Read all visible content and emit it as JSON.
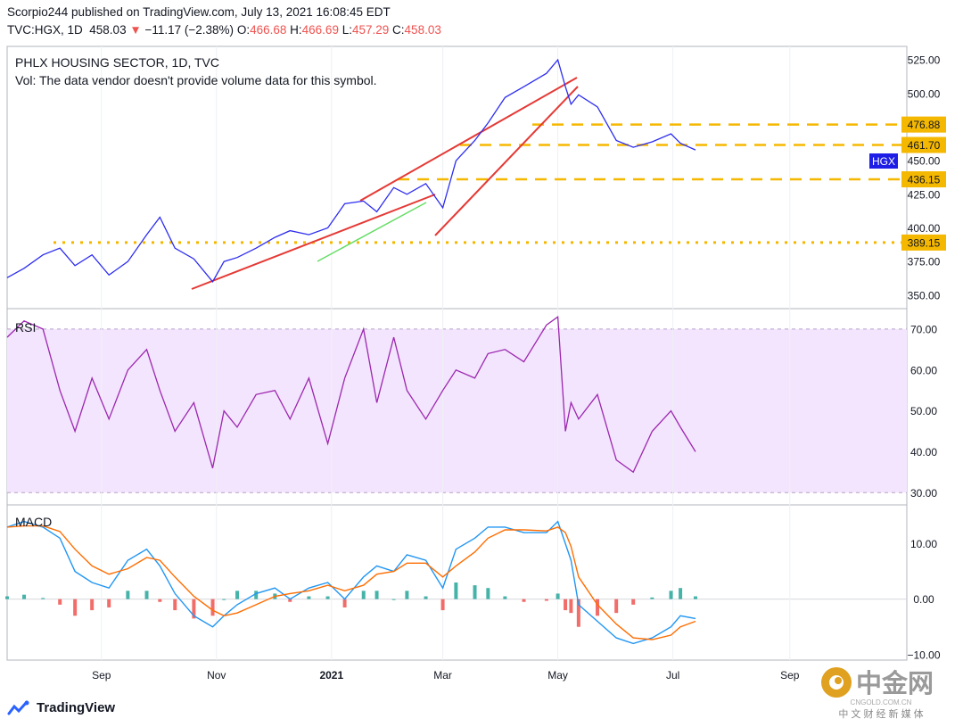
{
  "header": {
    "published": "Scorpio244 published on TradingView.com, July 13, 2021 16:08:45 EDT",
    "symbol": "TVC:HGX, 1D",
    "last": "458.03",
    "change_arrow": "▼",
    "change": "−11.17 (−2.38%)",
    "o_label": "O:",
    "o": "466.68",
    "h_label": "H:",
    "h": "466.69",
    "l_label": "L:",
    "l": "457.29",
    "c_label": "C:",
    "c": "458.03"
  },
  "price_pane": {
    "title": "PHLX HOUSING SECTOR, 1D, TVC",
    "vol_note": "Vol: The data vendor doesn't provide volume data for this symbol.",
    "ticker_badge": "HGX",
    "level_labels": [
      "476.88",
      "461.70",
      "436.15",
      "389.15"
    ]
  },
  "rsi_pane": {
    "title": "RSI"
  },
  "macd_pane": {
    "title": "MACD"
  },
  "x_axis_labels": [
    "Sep",
    "Nov",
    "2021",
    "Mar",
    "May",
    "Jul",
    "Sep"
  ],
  "footer": {
    "brand": "TradingView"
  },
  "watermark": {
    "cn": "中金网",
    "en": "CNGOLD.COM.CN",
    "tag": "中 文 财 经 新 媒 体"
  },
  "colors": {
    "price": "#2d2df0",
    "rsi": "#9c27b0",
    "macd": "#2196f3",
    "signal": "#ff6d00",
    "trend": "#e53935",
    "level": "#f5b800",
    "support": "#66dd66"
  },
  "chart_data": [
    {
      "type": "line",
      "title": "PHLX HOUSING SECTOR, 1D, TVC",
      "ylim": [
        340,
        535
      ],
      "yticks": [
        350,
        375,
        400,
        425,
        450,
        475,
        500,
        525
      ],
      "ytick_labels": [
        "350.00",
        "375.00",
        "400.00",
        "425.00",
        "450.00",
        "475.00",
        "500.00",
        "525.00"
      ],
      "x": [
        "2020-07-13",
        "2020-07-22",
        "2020-08-01",
        "2020-08-10",
        "2020-08-18",
        "2020-08-27",
        "2020-09-05",
        "2020-09-15",
        "2020-09-25",
        "2020-10-02",
        "2020-10-10",
        "2020-10-20",
        "2020-10-30",
        "2020-11-05",
        "2020-11-12",
        "2020-11-22",
        "2020-12-02",
        "2020-12-10",
        "2020-12-20",
        "2020-12-30",
        "2021-01-08",
        "2021-01-18",
        "2021-01-25",
        "2021-02-03",
        "2021-02-10",
        "2021-02-20",
        "2021-03-01",
        "2021-03-08",
        "2021-03-18",
        "2021-03-25",
        "2021-04-03",
        "2021-04-13",
        "2021-04-25",
        "2021-05-01",
        "2021-05-05",
        "2021-05-08",
        "2021-05-12",
        "2021-05-22",
        "2021-06-01",
        "2021-06-10",
        "2021-06-20",
        "2021-06-30",
        "2021-07-05",
        "2021-07-13"
      ],
      "series": [
        {
          "values": [
            363,
            370,
            380,
            385,
            372,
            380,
            365,
            375,
            395,
            408,
            385,
            377,
            360,
            375,
            378,
            385,
            393,
            398,
            395,
            400,
            418,
            420,
            412,
            430,
            425,
            433,
            415,
            450,
            465,
            478,
            497,
            505,
            515,
            525,
            505,
            492,
            499,
            490,
            465,
            460,
            464,
            470,
            463,
            458
          ]
        }
      ],
      "levels": [
        476.88,
        461.7,
        436.15,
        389.15
      ]
    },
    {
      "type": "line",
      "title": "RSI",
      "ylim": [
        27,
        75
      ],
      "yticks": [
        30,
        40,
        50,
        60,
        70
      ],
      "ytick_labels": [
        "30.00",
        "40.00",
        "50.00",
        "60.00",
        "70.00"
      ],
      "band": [
        30,
        70
      ],
      "x": [
        "2020-07-13",
        "2020-07-22",
        "2020-08-01",
        "2020-08-10",
        "2020-08-18",
        "2020-08-27",
        "2020-09-05",
        "2020-09-15",
        "2020-09-25",
        "2020-10-02",
        "2020-10-10",
        "2020-10-20",
        "2020-10-30",
        "2020-11-05",
        "2020-11-12",
        "2020-11-22",
        "2020-12-02",
        "2020-12-10",
        "2020-12-20",
        "2020-12-30",
        "2021-01-08",
        "2021-01-18",
        "2021-01-25",
        "2021-02-03",
        "2021-02-10",
        "2021-02-20",
        "2021-03-01",
        "2021-03-08",
        "2021-03-18",
        "2021-03-25",
        "2021-04-03",
        "2021-04-13",
        "2021-04-25",
        "2021-05-01",
        "2021-05-05",
        "2021-05-08",
        "2021-05-12",
        "2021-05-22",
        "2021-06-01",
        "2021-06-10",
        "2021-06-20",
        "2021-06-30",
        "2021-07-05",
        "2021-07-13"
      ],
      "series": [
        {
          "values": [
            68,
            72,
            70,
            55,
            45,
            58,
            48,
            60,
            65,
            55,
            45,
            52,
            36,
            50,
            46,
            54,
            55,
            48,
            58,
            42,
            58,
            70,
            52,
            68,
            55,
            48,
            55,
            60,
            58,
            64,
            65,
            62,
            71,
            73,
            45,
            52,
            48,
            54,
            38,
            35,
            45,
            50,
            46,
            40
          ]
        }
      ]
    },
    {
      "type": "line",
      "title": "MACD",
      "ylim": [
        -11,
        17
      ],
      "yticks": [
        -10,
        0,
        10
      ],
      "ytick_labels": [
        "−10.00",
        "0.00",
        "10.00"
      ],
      "x": [
        "2020-07-13",
        "2020-07-22",
        "2020-08-01",
        "2020-08-10",
        "2020-08-18",
        "2020-08-27",
        "2020-09-05",
        "2020-09-15",
        "2020-09-25",
        "2020-10-02",
        "2020-10-10",
        "2020-10-20",
        "2020-10-30",
        "2020-11-05",
        "2020-11-12",
        "2020-11-22",
        "2020-12-02",
        "2020-12-10",
        "2020-12-20",
        "2020-12-30",
        "2021-01-08",
        "2021-01-18",
        "2021-01-25",
        "2021-02-03",
        "2021-02-10",
        "2021-02-20",
        "2021-03-01",
        "2021-03-08",
        "2021-03-18",
        "2021-03-25",
        "2021-04-03",
        "2021-04-13",
        "2021-04-25",
        "2021-05-01",
        "2021-05-05",
        "2021-05-08",
        "2021-05-12",
        "2021-05-22",
        "2021-06-01",
        "2021-06-10",
        "2021-06-20",
        "2021-06-30",
        "2021-07-05",
        "2021-07-13"
      ],
      "series": [
        {
          "name": "MACD",
          "values": [
            13,
            14,
            13,
            11,
            5,
            3,
            2,
            7,
            9,
            6,
            1,
            -3,
            -5,
            -3,
            -1,
            1,
            2,
            0,
            2,
            3,
            0,
            4,
            6,
            5,
            8,
            7,
            2,
            9,
            11,
            13,
            13,
            12,
            12,
            14,
            10,
            7,
            -1,
            -4,
            -7,
            -8,
            -7,
            -5,
            -3,
            -3.5
          ]
        },
        {
          "name": "Signal",
          "values": [
            13,
            13.2,
            13.2,
            12.2,
            9,
            6,
            4.5,
            5.5,
            7.5,
            7,
            4,
            0.5,
            -2,
            -3,
            -2.5,
            -1,
            0.5,
            1,
            1.5,
            2.5,
            1.5,
            2.5,
            4.5,
            5,
            6.5,
            6.5,
            4,
            6,
            8.5,
            11,
            12.5,
            12.5,
            12.3,
            13,
            12,
            9.5,
            4,
            -1,
            -4.5,
            -7,
            -7.3,
            -6.5,
            -5,
            -4
          ]
        }
      ],
      "histogram": [
        0.5,
        0.8,
        0.2,
        -1,
        -3,
        -2,
        -1.5,
        1.5,
        1.5,
        -0.5,
        -2,
        -3.5,
        -3,
        0,
        1.5,
        1.5,
        1,
        -0.5,
        0.5,
        0.5,
        -1.5,
        1.5,
        1.5,
        0,
        1.5,
        0.5,
        -2,
        3,
        2.5,
        2,
        0.5,
        -0.5,
        -0.3,
        1,
        -2,
        -2.5,
        -5,
        -3,
        -2.5,
        -1,
        0.3,
        1.5,
        2,
        0.5
      ]
    }
  ]
}
